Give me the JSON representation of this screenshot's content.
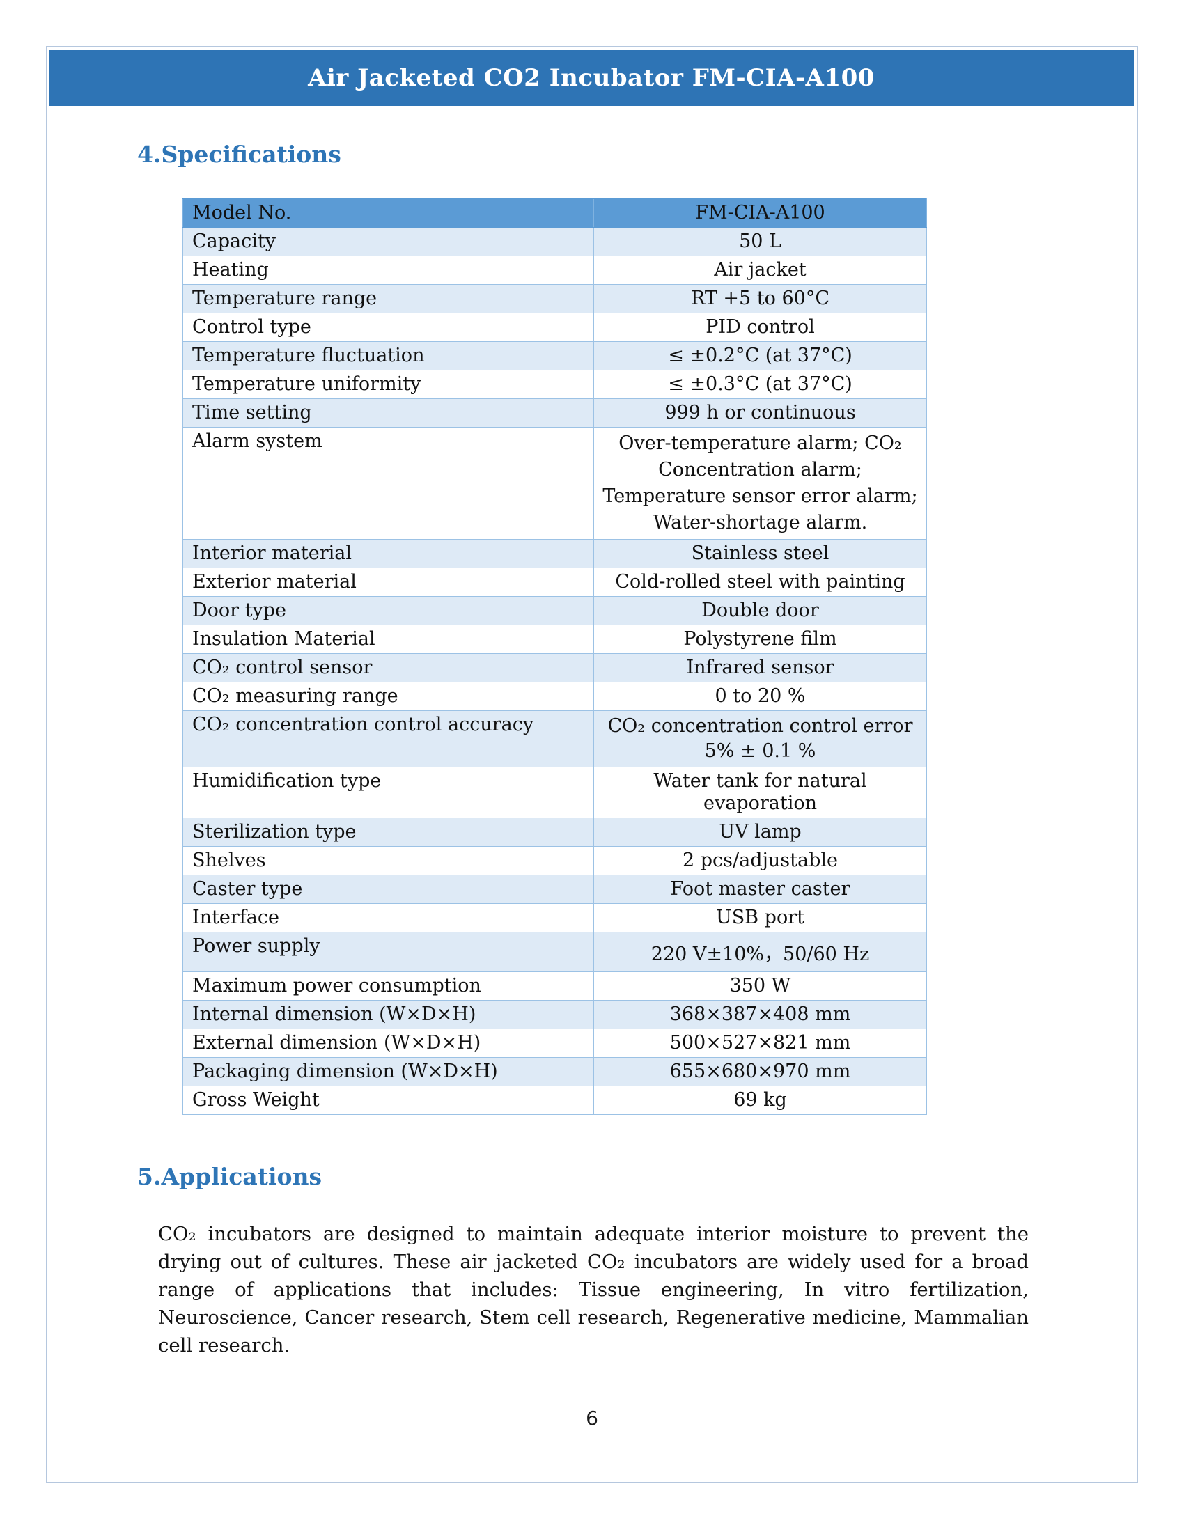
{
  "page": {
    "header_title": "Air Jacketed CO2 Incubator FM-CIA-A100",
    "page_number": "6"
  },
  "sections": [
    {
      "number": "4.",
      "title": "Specifications"
    },
    {
      "number": "5.",
      "title": "Applications"
    }
  ],
  "spec_table": {
    "header": {
      "label": "Model No.",
      "value": "FM-CIA-A100"
    },
    "rows": [
      {
        "label": "Capacity",
        "value": "50 L"
      },
      {
        "label": "Heating",
        "value": "Air jacket"
      },
      {
        "label": "Temperature range",
        "value": "RT +5 to 60°C"
      },
      {
        "label": "Control type",
        "value": "PID control"
      },
      {
        "label": "Temperature fluctuation",
        "value": "≤ ±0.2°C (at 37°C)"
      },
      {
        "label": "Temperature uniformity",
        "value": "≤ ±0.3°C (at 37°C)"
      },
      {
        "label": "Time setting",
        "value": "999 h or continuous"
      },
      {
        "label": "Alarm system",
        "value": "Over-temperature alarm; CO₂ Concentration alarm; Temperature sensor error alarm; Water-shortage alarm."
      },
      {
        "label": "Interior material",
        "value": "Stainless steel"
      },
      {
        "label": "Exterior material",
        "value": "Cold-rolled steel with painting"
      },
      {
        "label": "Door type",
        "value": "Double door"
      },
      {
        "label": "Insulation Material",
        "value": "Polystyrene film"
      },
      {
        "label": "CO₂ control sensor",
        "value": "Infrared sensor"
      },
      {
        "label": "CO₂ measuring range",
        "value": "0 to 20 %"
      },
      {
        "label": "CO₂ concentration control accuracy",
        "value": "CO₂ concentration control error 5% ± 0.1 %"
      },
      {
        "label": "Humidification type",
        "value": "Water tank for natural evaporation"
      },
      {
        "label": "Sterilization type",
        "value": "UV lamp"
      },
      {
        "label": "Shelves",
        "value": "2 pcs/adjustable"
      },
      {
        "label": "Caster type",
        "value": "Foot master caster"
      },
      {
        "label": "Interface",
        "value": "USB port"
      },
      {
        "label": "Power supply",
        "value": "220 V±10%，50/60 Hz"
      },
      {
        "label": "Maximum power consumption",
        "value": "350 W"
      },
      {
        "label": "Internal dimension (W×D×H)",
        "value": "368×387×408 mm"
      },
      {
        "label": "External dimension (W×D×H)",
        "value": "500×527×821 mm"
      },
      {
        "label": "Packaging dimension (W×D×H)",
        "value": "655×680×970 mm"
      },
      {
        "label": "Gross Weight",
        "value": "69 kg"
      }
    ]
  },
  "applications": {
    "paragraph": "CO₂ incubators are designed to maintain adequate interior moisture to prevent the drying out of cultures. These air jacketed CO₂ incubators are widely used for a broad range of applications that includes: Tissue engineering, In vitro fertilization, Neuroscience, Cancer research, Stem cell research, Regenerative medicine, Mammalian cell research."
  },
  "colors": {
    "title_bar_blue": "#2E74B5",
    "table_header_blue": "#5B9BD5",
    "band_row_blue": "#DEEAF6",
    "heading_blue": "#2E75B6",
    "frame_border": "#B5C7DE"
  }
}
